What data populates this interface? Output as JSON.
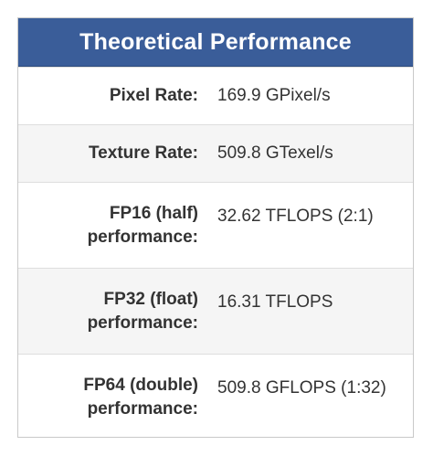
{
  "table": {
    "title": "Theoretical Performance",
    "rows": [
      {
        "label": "Pixel Rate:",
        "value": "169.9 GPixel/s"
      },
      {
        "label": "Texture Rate:",
        "value": "509.8 GTexel/s"
      },
      {
        "label_line1": "FP16 (half)",
        "label_line2": "performance:",
        "value": "32.62 TFLOPS (2:1)"
      },
      {
        "label_line1": "FP32 (float)",
        "label_line2": "performance:",
        "value": "16.31 TFLOPS"
      },
      {
        "label_line1": "FP64 (double)",
        "label_line2": "performance:",
        "value": "509.8 GFLOPS (1:32)"
      }
    ]
  }
}
